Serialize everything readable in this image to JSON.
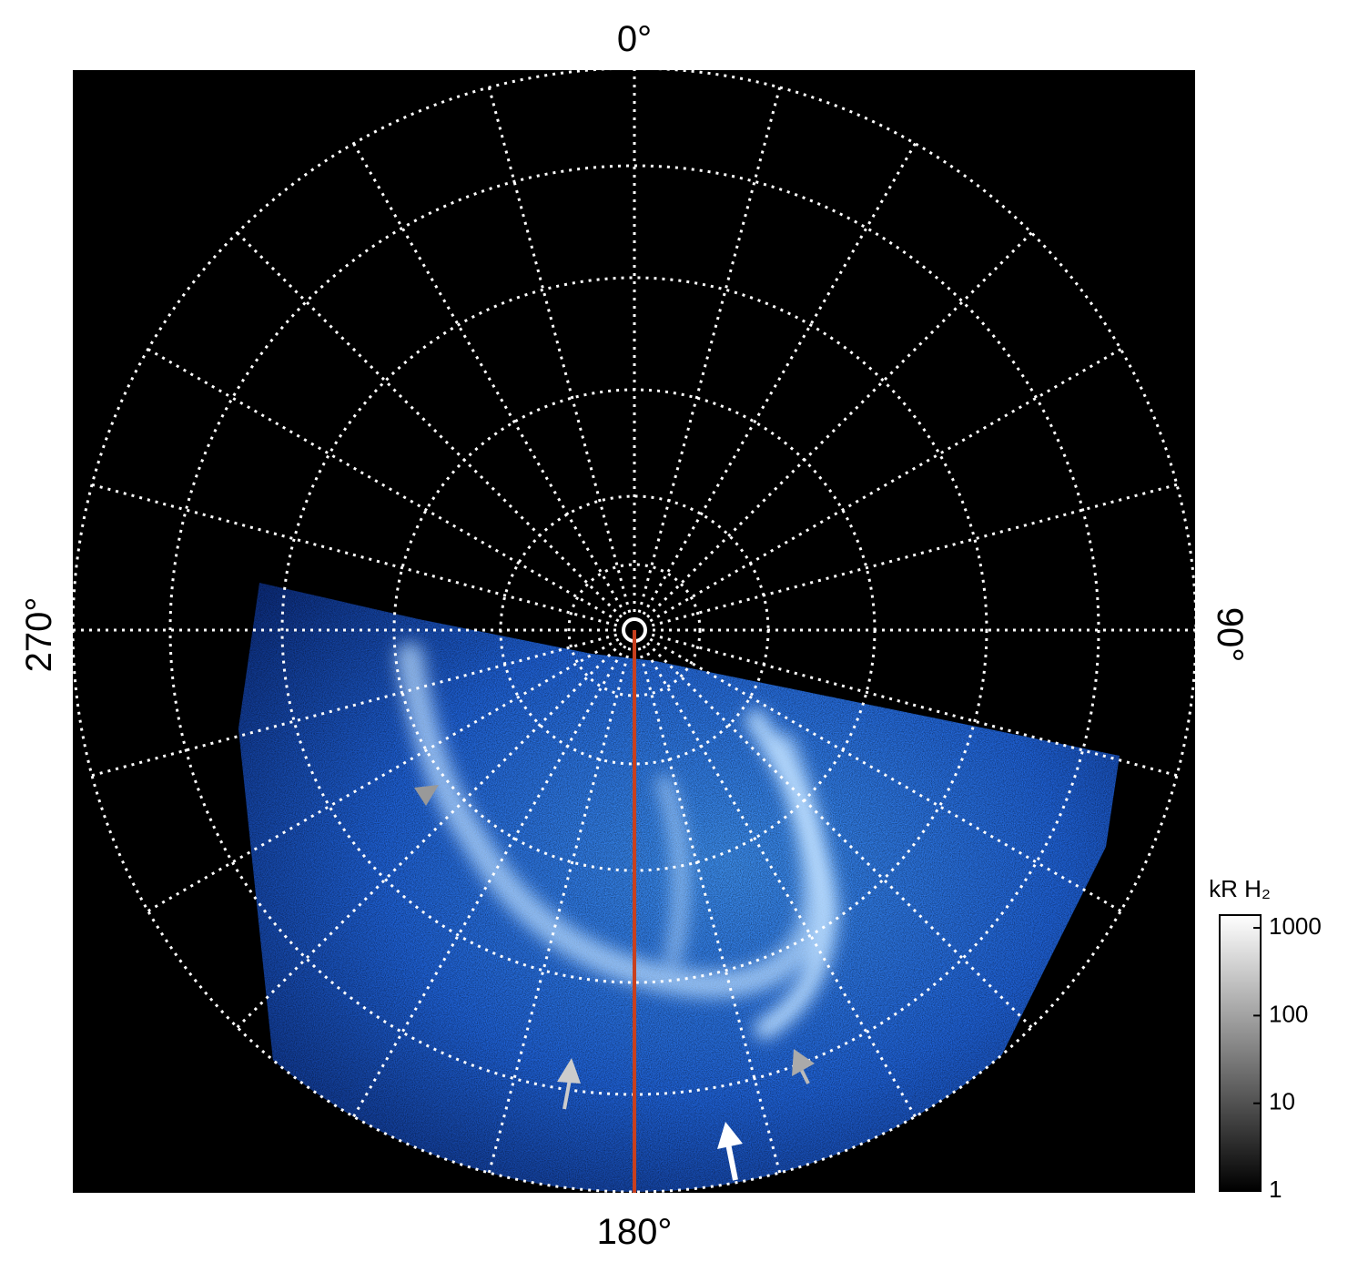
{
  "labels": {
    "top": "0°",
    "right": "90°",
    "bottom": "180°",
    "left": "270°"
  },
  "colorbar": {
    "label": "kR H₂",
    "scale": "log",
    "clim": [
      1,
      1400
    ],
    "ticks": [
      1,
      10,
      100,
      1000
    ]
  }
}
